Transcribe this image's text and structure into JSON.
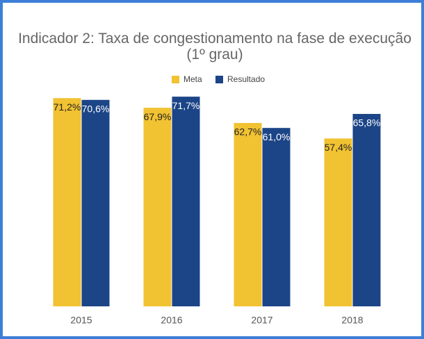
{
  "chart_data": {
    "type": "bar",
    "title": "Indicador 2: Taxa de congestionamento na fase de execução (1º grau)",
    "categories": [
      "2015",
      "2016",
      "2017",
      "2018"
    ],
    "series": [
      {
        "name": "Meta",
        "color": "#f1c232",
        "values": [
          71.2,
          67.9,
          62.7,
          57.4
        ],
        "value_labels": [
          "71,2%",
          "67,9%",
          "62,7%",
          "57,4%"
        ]
      },
      {
        "name": "Resultado",
        "color": "#1c4587",
        "values": [
          70.6,
          71.7,
          61.0,
          65.8
        ],
        "value_labels": [
          "70,6%",
          "71,7%",
          "61,0%",
          "65,8%"
        ]
      }
    ],
    "ylim": [
      0,
      100
    ],
    "legend": "top"
  }
}
